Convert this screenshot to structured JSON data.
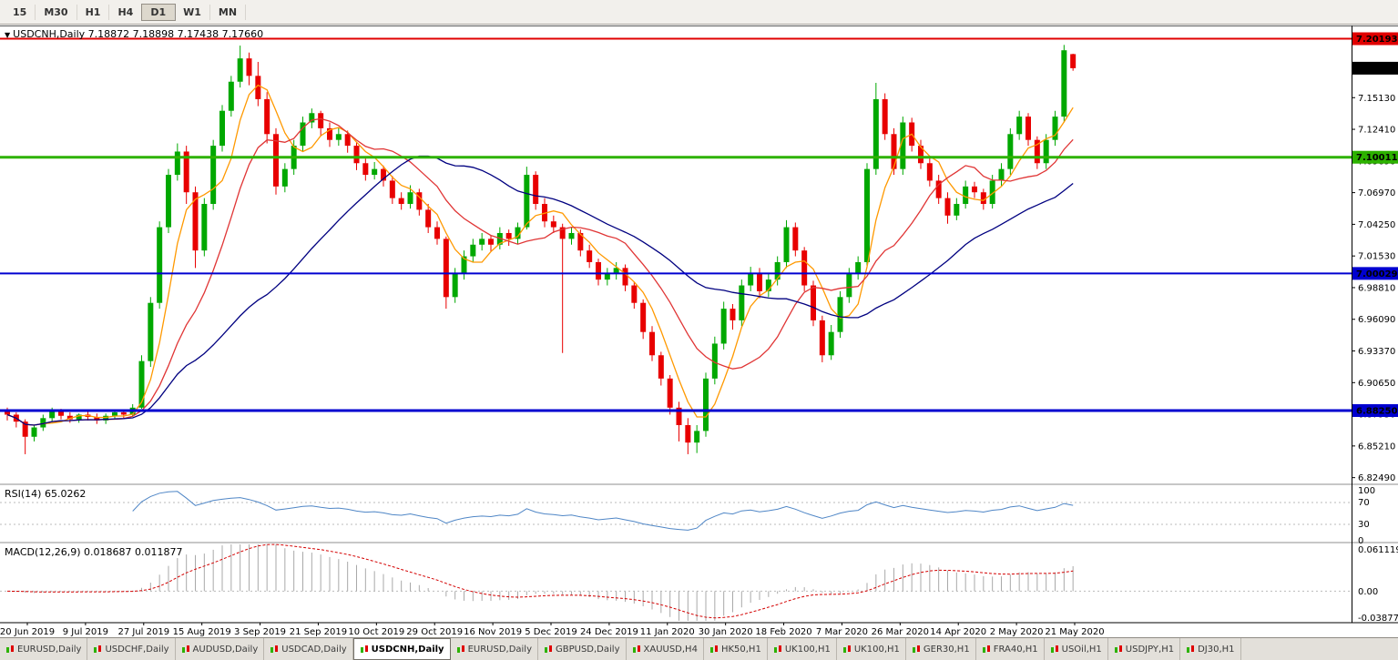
{
  "toolbar": {
    "timeframes": [
      "15",
      "M30",
      "H1",
      "H4",
      "D1",
      "W1",
      "MN"
    ],
    "active_timeframe": "D1"
  },
  "chart": {
    "collapse_icon": "▼",
    "title_line": "USDCNH,Daily 7.18872 7.18898 7.17438 7.17660"
  },
  "rsi": {
    "label": "RSI(14) 65.0262",
    "period": 14,
    "levels": [
      70,
      30
    ],
    "axis_labels": [
      "100",
      "70",
      "30",
      "0"
    ],
    "line_color": "#4F86C6",
    "level_color": "#BBBBBB"
  },
  "macd": {
    "label": "MACD(12,26,9) 0.018687 0.011877",
    "fast": 12,
    "slow": 26,
    "signal": 9,
    "axis_top": "0.061119",
    "axis_zero": "0.00",
    "axis_bottom": "-0.038777",
    "range": [
      -0.038777,
      0.061119
    ],
    "hist_color": "#A9A9A9",
    "signal_color": "#D40000"
  },
  "price_axis": {
    "ticks": [
      "7.15130",
      "7.12410",
      "7.09690",
      "7.06970",
      "7.04250",
      "7.01530",
      "6.98810",
      "6.96090",
      "6.93370",
      "6.90650",
      "6.87930",
      "6.85210",
      "6.82490"
    ],
    "badges": [
      {
        "text": "7.20193",
        "price": 7.20193,
        "bg": "#E00000"
      },
      {
        "text": "7.17660",
        "price": 7.1766,
        "bg": "#000000"
      },
      {
        "text": "7.10011",
        "price": 7.10011,
        "bg": "#2DB200"
      },
      {
        "text": "7.00029",
        "price": 7.00029,
        "bg": "#0000D0"
      },
      {
        "text": "6.88250",
        "price": 6.8825,
        "bg": "#0000D0"
      }
    ]
  },
  "hlines": [
    {
      "price": 7.20193,
      "color": "#E00000",
      "width": 2
    },
    {
      "price": 7.10011,
      "color": "#2DB200",
      "width": 3
    },
    {
      "price": 7.00029,
      "color": "#0000D0",
      "width": 2
    },
    {
      "price": 6.8825,
      "color": "#0000D0",
      "width": 3
    }
  ],
  "date_axis": [
    "20 Jun 2019",
    "9 Jul 2019",
    "27 Jul 2019",
    "15 Aug 2019",
    "3 Sep 2019",
    "21 Sep 2019",
    "10 Oct 2019",
    "29 Oct 2019",
    "16 Nov 2019",
    "5 Dec 2019",
    "24 Dec 2019",
    "11 Jan 2020",
    "30 Jan 2020",
    "18 Feb 2020",
    "7 Mar 2020",
    "26 Mar 2020",
    "14 Apr 2020",
    "2 May 2020",
    "21 May 2020"
  ],
  "tabs": [
    {
      "label": "EURUSD,Daily",
      "active": false
    },
    {
      "label": "USDCHF,Daily",
      "active": false
    },
    {
      "label": "AUDUSD,Daily",
      "active": false
    },
    {
      "label": "USDCAD,Daily",
      "active": false
    },
    {
      "label": "USDCNH,Daily",
      "active": true
    },
    {
      "label": "EURUSD,Daily",
      "active": false
    },
    {
      "label": "GBPUSD,Daily",
      "active": false
    },
    {
      "label": "XAUUSD,H4",
      "active": false
    },
    {
      "label": "HK50,H1",
      "active": false
    },
    {
      "label": "UK100,H1",
      "active": false
    },
    {
      "label": "UK100,H1",
      "active": false
    },
    {
      "label": "GER30,H1",
      "active": false
    },
    {
      "label": "FRA40,H1",
      "active": false
    },
    {
      "label": "USOil,H1",
      "active": false
    },
    {
      "label": "USDJPY,H1",
      "active": false
    },
    {
      "label": "DJ30,H1",
      "active": false
    }
  ],
  "chart_data": {
    "type": "candlestick",
    "symbol": "USDCNH",
    "timeframe": "Daily",
    "last_ohlc": {
      "open": 7.18872,
      "high": 7.18898,
      "low": 7.17438,
      "close": 7.1766
    },
    "price_range": [
      6.8215,
      7.2125
    ],
    "up_color": "#00A800",
    "down_color": "#E80000",
    "moving_averages": [
      {
        "period": 5,
        "color": "#FF9900"
      },
      {
        "period": 12,
        "color": "#E03535"
      },
      {
        "period": 30,
        "color": "#000080"
      }
    ],
    "candles": [
      [
        6.882,
        6.885,
        6.874,
        6.879
      ],
      [
        6.879,
        6.881,
        6.868,
        6.873
      ],
      [
        6.873,
        6.875,
        6.845,
        6.86
      ],
      [
        6.86,
        6.87,
        6.856,
        6.868
      ],
      [
        6.868,
        6.879,
        6.865,
        6.876
      ],
      [
        6.876,
        6.885,
        6.873,
        6.882
      ],
      [
        6.882,
        6.884,
        6.875,
        6.878
      ],
      [
        6.878,
        6.881,
        6.872,
        6.875
      ],
      [
        6.875,
        6.88,
        6.872,
        6.879
      ],
      [
        6.879,
        6.882,
        6.874,
        6.877
      ],
      [
        6.877,
        6.88,
        6.871,
        6.874
      ],
      [
        6.874,
        6.88,
        6.871,
        6.878
      ],
      [
        6.878,
        6.883,
        6.875,
        6.881
      ],
      [
        6.881,
        6.883,
        6.876,
        6.879
      ],
      [
        6.879,
        6.888,
        6.877,
        6.885
      ],
      [
        6.885,
        6.93,
        6.884,
        6.925
      ],
      [
        6.925,
        6.98,
        6.92,
        6.975
      ],
      [
        6.975,
        7.045,
        6.97,
        7.04
      ],
      [
        7.04,
        7.09,
        7.035,
        7.085
      ],
      [
        7.085,
        7.112,
        7.08,
        7.105
      ],
      [
        7.105,
        7.11,
        7.06,
        7.07
      ],
      [
        7.07,
        7.075,
        7.005,
        7.02
      ],
      [
        7.02,
        7.065,
        7.015,
        7.06
      ],
      [
        7.06,
        7.115,
        7.055,
        7.11
      ],
      [
        7.11,
        7.145,
        7.105,
        7.14
      ],
      [
        7.14,
        7.17,
        7.135,
        7.165
      ],
      [
        7.165,
        7.196,
        7.16,
        7.185
      ],
      [
        7.185,
        7.19,
        7.162,
        7.17
      ],
      [
        7.17,
        7.182,
        7.144,
        7.15
      ],
      [
        7.15,
        7.156,
        7.112,
        7.12
      ],
      [
        7.12,
        7.125,
        7.068,
        7.075
      ],
      [
        7.075,
        7.095,
        7.07,
        7.09
      ],
      [
        7.09,
        7.115,
        7.085,
        7.11
      ],
      [
        7.11,
        7.135,
        7.105,
        7.13
      ],
      [
        7.13,
        7.142,
        7.125,
        7.138
      ],
      [
        7.138,
        7.14,
        7.118,
        7.125
      ],
      [
        7.125,
        7.13,
        7.109,
        7.115
      ],
      [
        7.115,
        7.126,
        7.11,
        7.12
      ],
      [
        7.12,
        7.123,
        7.104,
        7.11
      ],
      [
        7.11,
        7.113,
        7.089,
        7.095
      ],
      [
        7.095,
        7.099,
        7.08,
        7.085
      ],
      [
        7.085,
        7.096,
        7.081,
        7.09
      ],
      [
        7.09,
        7.093,
        7.075,
        7.08
      ],
      [
        7.08,
        7.084,
        7.06,
        7.065
      ],
      [
        7.065,
        7.07,
        7.055,
        7.06
      ],
      [
        7.06,
        7.076,
        7.056,
        7.07
      ],
      [
        7.07,
        7.073,
        7.05,
        7.055
      ],
      [
        7.055,
        7.06,
        7.035,
        7.04
      ],
      [
        7.04,
        7.045,
        7.025,
        7.03
      ],
      [
        7.03,
        7.032,
        6.97,
        6.98
      ],
      [
        6.98,
        7.005,
        6.975,
        7.0
      ],
      [
        7.0,
        7.02,
        6.995,
        7.015
      ],
      [
        7.015,
        7.03,
        7.01,
        7.025
      ],
      [
        7.025,
        7.035,
        7.02,
        7.03
      ],
      [
        7.03,
        7.033,
        7.019,
        7.025
      ],
      [
        7.025,
        7.04,
        7.021,
        7.035
      ],
      [
        7.035,
        7.038,
        7.024,
        7.03
      ],
      [
        7.03,
        7.044,
        7.026,
        7.04
      ],
      [
        7.04,
        7.092,
        7.038,
        7.085
      ],
      [
        7.085,
        7.088,
        7.055,
        7.06
      ],
      [
        7.06,
        7.065,
        7.04,
        7.045
      ],
      [
        7.045,
        7.05,
        7.035,
        7.04
      ],
      [
        7.04,
        7.043,
        6.932,
        7.03
      ],
      [
        7.03,
        7.04,
        7.025,
        7.035
      ],
      [
        7.035,
        7.038,
        7.015,
        7.02
      ],
      [
        7.02,
        7.025,
        7.005,
        7.01
      ],
      [
        7.01,
        7.013,
        6.99,
        6.995
      ],
      [
        6.995,
        7.005,
        6.99,
        7.0
      ],
      [
        7.0,
        7.01,
        6.995,
        7.005
      ],
      [
        7.005,
        7.008,
        6.985,
        6.99
      ],
      [
        6.99,
        6.993,
        6.97,
        6.975
      ],
      [
        6.975,
        6.978,
        6.944,
        6.95
      ],
      [
        6.95,
        6.955,
        6.925,
        6.93
      ],
      [
        6.93,
        6.933,
        6.904,
        6.91
      ],
      [
        6.91,
        6.913,
        6.879,
        6.885
      ],
      [
        6.885,
        6.89,
        6.856,
        6.87
      ],
      [
        6.87,
        6.876,
        6.845,
        6.855
      ],
      [
        6.855,
        6.87,
        6.846,
        6.865
      ],
      [
        6.865,
        6.915,
        6.86,
        6.91
      ],
      [
        6.91,
        6.946,
        6.905,
        6.94
      ],
      [
        6.94,
        6.976,
        6.935,
        6.97
      ],
      [
        6.97,
        6.974,
        6.952,
        6.96
      ],
      [
        6.96,
        6.995,
        6.955,
        6.99
      ],
      [
        6.99,
        7.006,
        6.985,
        7.0
      ],
      [
        7.0,
        7.005,
        6.979,
        6.985
      ],
      [
        6.985,
        7.0,
        6.98,
        6.995
      ],
      [
        6.995,
        7.015,
        6.99,
        7.01
      ],
      [
        7.01,
        7.046,
        7.005,
        7.04
      ],
      [
        7.04,
        7.044,
        7.015,
        7.02
      ],
      [
        7.02,
        7.023,
        6.985,
        6.99
      ],
      [
        6.99,
        6.994,
        6.955,
        6.96
      ],
      [
        6.96,
        6.964,
        6.924,
        6.93
      ],
      [
        6.93,
        6.956,
        6.926,
        6.95
      ],
      [
        6.95,
        6.985,
        6.945,
        6.98
      ],
      [
        6.98,
        7.005,
        6.975,
        7.0
      ],
      [
        7.0,
        7.015,
        6.995,
        7.01
      ],
      [
        7.01,
        7.095,
        7.005,
        7.09
      ],
      [
        7.09,
        7.164,
        7.085,
        7.15
      ],
      [
        7.15,
        7.155,
        7.115,
        7.12
      ],
      [
        7.12,
        7.125,
        7.085,
        7.09
      ],
      [
        7.09,
        7.135,
        7.085,
        7.13
      ],
      [
        7.13,
        7.134,
        7.105,
        7.11
      ],
      [
        7.11,
        7.115,
        7.09,
        7.095
      ],
      [
        7.095,
        7.1,
        7.075,
        7.08
      ],
      [
        7.08,
        7.085,
        7.06,
        7.065
      ],
      [
        7.065,
        7.07,
        7.043,
        7.05
      ],
      [
        7.05,
        7.065,
        7.046,
        7.06
      ],
      [
        7.06,
        7.08,
        7.056,
        7.075
      ],
      [
        7.075,
        7.079,
        7.065,
        7.07
      ],
      [
        7.07,
        7.073,
        7.055,
        7.06
      ],
      [
        7.06,
        7.085,
        7.056,
        7.08
      ],
      [
        7.08,
        7.095,
        7.075,
        7.09
      ],
      [
        7.09,
        7.125,
        7.085,
        7.12
      ],
      [
        7.12,
        7.14,
        7.115,
        7.135
      ],
      [
        7.135,
        7.138,
        7.11,
        7.115
      ],
      [
        7.115,
        7.118,
        7.09,
        7.095
      ],
      [
        7.095,
        7.12,
        7.09,
        7.115
      ],
      [
        7.115,
        7.14,
        7.11,
        7.135
      ],
      [
        7.135,
        7.1966,
        7.13,
        7.192
      ],
      [
        7.1887,
        7.189,
        7.1744,
        7.1766
      ]
    ]
  }
}
